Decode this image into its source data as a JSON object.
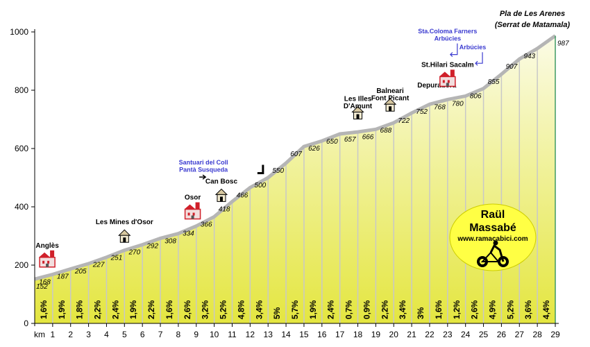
{
  "chart_data": {
    "type": "area",
    "title": "Pla de Les Arenes",
    "subtitle": "(Serrat de Matamala)",
    "ylim": [
      0,
      1000
    ],
    "y_ticks": [
      0,
      200,
      400,
      600,
      800,
      1000
    ],
    "xlim": [
      0,
      29
    ],
    "km_prefix": "km",
    "x_tick_labels": [
      "1",
      "2",
      "3",
      "4",
      "5",
      "6",
      "7",
      "8",
      "9",
      "10",
      "11",
      "12",
      "13",
      "14",
      "15",
      "16",
      "17",
      "18",
      "19",
      "20",
      "21",
      "22",
      "23",
      "24",
      "25",
      "26",
      "27",
      "28",
      "29"
    ],
    "km": [
      0,
      1,
      2,
      3,
      4,
      5,
      6,
      7,
      8,
      9,
      10,
      11,
      12,
      13,
      14,
      15,
      16,
      17,
      18,
      19,
      20,
      21,
      22,
      23,
      24,
      25,
      26,
      27,
      28,
      29
    ],
    "elevations": [
      152,
      168,
      187,
      205,
      227,
      251,
      270,
      292,
      308,
      334,
      366,
      418,
      466,
      500,
      550,
      607,
      626,
      650,
      657,
      666,
      688,
      722,
      752,
      768,
      780,
      806,
      855,
      907,
      943,
      987
    ],
    "elevation_labels": [
      "152",
      "168",
      "187",
      "205",
      "227",
      "251",
      "270",
      "292",
      "308",
      "334",
      "366",
      "418",
      "466",
      "500",
      "550",
      "607",
      "626",
      "650",
      "657",
      "666",
      "688",
      "722",
      "752",
      "768",
      "780",
      "806",
      "855",
      "907",
      "943",
      "987"
    ],
    "gradients": [
      "1,6%",
      "1,9%",
      "1,8%",
      "2,2%",
      "2,4%",
      "1,9%",
      "2,2%",
      "1,6%",
      "2,6%",
      "3,2%",
      "5,2%",
      "4,8%",
      "3,4%",
      "5%",
      "5,7%",
      "1,9%",
      "2,4%",
      "0,7%",
      "0,9%",
      "2,2%",
      "3,4%",
      "3%",
      "1,6%",
      "1,2%",
      "2,6%",
      "4,9%",
      "5,2%",
      "3,6%",
      "4,4%"
    ],
    "places": [
      {
        "text": "Anglès",
        "km": 0.7,
        "elev": 260,
        "icon": "church"
      },
      {
        "text": "Les Mines d'Osor",
        "km": 5.0,
        "elev": 340,
        "icon": "house"
      },
      {
        "text": "Osor",
        "km": 8.8,
        "elev": 425,
        "icon": "church"
      },
      {
        "text": "Santuari del Coll",
        "km": 9.4,
        "elev": 545,
        "color": "blue",
        "junction": "right-arrow"
      },
      {
        "text": "Pantà Susqueda",
        "km": 9.4,
        "elev": 520,
        "color": "blue"
      },
      {
        "text": "Can Bosc",
        "km": 10.4,
        "elev": 480,
        "icon": "house"
      },
      {
        "text": "",
        "km": 12.6,
        "elev": 525,
        "junction": "turn"
      },
      {
        "text": "Les Illes",
        "km": 18.0,
        "elev": 763,
        "icon": "house"
      },
      {
        "text": "D'Amunt",
        "km": 18.0,
        "elev": 738
      },
      {
        "text": "Balneari",
        "km": 19.8,
        "elev": 790,
        "icon": "house"
      },
      {
        "text": "Font Picant",
        "km": 19.8,
        "elev": 765
      },
      {
        "text": "Depuradora",
        "km": 22.4,
        "elev": 810
      },
      {
        "text": "St.Hilari Sacalm",
        "km": 23.0,
        "elev": 880,
        "icon": "church"
      },
      {
        "text": "Sta.Coloma Farners",
        "km": 23.0,
        "elev": 995,
        "color": "blue"
      },
      {
        "text": "Arbúcies",
        "km": 23.0,
        "elev": 970,
        "color": "blue",
        "junction": "up-arrow"
      },
      {
        "text": "Arbúcies",
        "km": 24.4,
        "elev": 940,
        "color": "blue",
        "junction": "up-arrow"
      }
    ],
    "colors": {
      "fill_top": "#fbfbe6",
      "fill_bottom": "#e4e640",
      "profile_line": "#b5b5b5",
      "km_separator": "#c8c8c8",
      "blue_label": "#3b3bd0",
      "logo_fill": "#ffff44",
      "church_red": "#d0202a"
    },
    "grid": false
  },
  "logo": {
    "line1": "Raül",
    "line2": "Massabé",
    "url": "www.ramacabici.com",
    "icon": "cyclist-icon"
  }
}
